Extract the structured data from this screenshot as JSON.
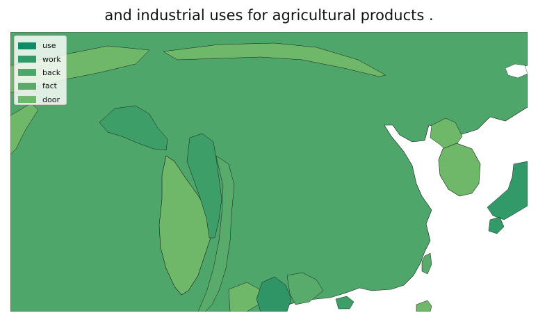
{
  "title": "and industrial uses for agricultural products .",
  "legend": {
    "items": [
      {
        "label": "use",
        "color": "#138a66"
      },
      {
        "label": "work",
        "color": "#329a68"
      },
      {
        "label": "back",
        "color": "#4ea66a"
      },
      {
        "label": "fact",
        "color": "#58ab6a"
      },
      {
        "label": "door",
        "color": "#6fb86a"
      }
    ]
  },
  "colors": {
    "ocean": "#ffffff",
    "border": "#1a1a1a"
  }
}
